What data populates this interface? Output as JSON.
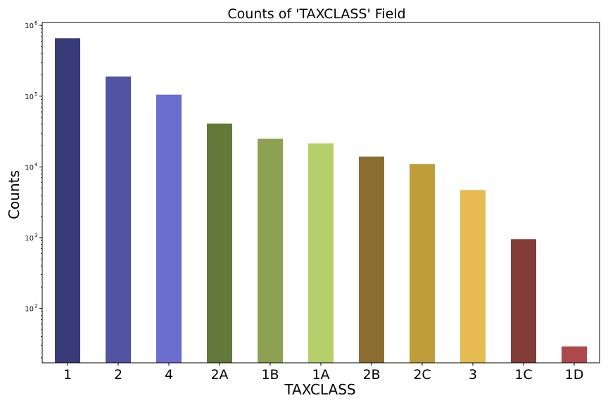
{
  "chart_data": {
    "type": "bar",
    "title": "Counts of 'TAXCLASS' Field",
    "xlabel": "TAXCLASS",
    "ylabel": "Counts",
    "yscale": "log",
    "ylim": [
      17,
      1100000
    ],
    "grid": false,
    "legend": "none",
    "categories": [
      "1",
      "2",
      "4",
      "2A",
      "1B",
      "1A",
      "2B",
      "2C",
      "3",
      "1C",
      "1D"
    ],
    "values": [
      660000,
      190000,
      105000,
      41000,
      25000,
      21500,
      14000,
      11000,
      4700,
      950,
      29
    ],
    "colors": [
      "#393b79",
      "#5254a3",
      "#6b6ecf",
      "#637939",
      "#8ca252",
      "#b5cf6b",
      "#8c6d31",
      "#bd9e39",
      "#e7ba52",
      "#843c39",
      "#ad494a"
    ],
    "yticks": [
      {
        "base": "10",
        "exp": "2",
        "value": 100
      },
      {
        "base": "10",
        "exp": "3",
        "value": 1000
      },
      {
        "base": "10",
        "exp": "4",
        "value": 10000
      },
      {
        "base": "10",
        "exp": "5",
        "value": 100000
      },
      {
        "base": "10",
        "exp": "6",
        "value": 1000000
      }
    ]
  }
}
